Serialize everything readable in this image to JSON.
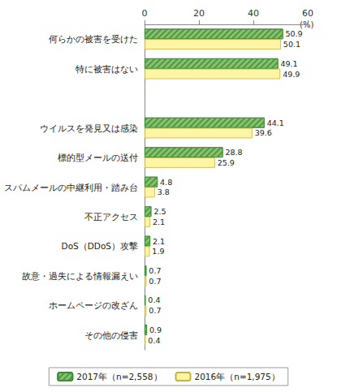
{
  "chart_data": {
    "type": "bar",
    "orientation": "horizontal",
    "x_label": "(%)",
    "categories": [
      "何らかの被害を受けた",
      "特に被害はない",
      null,
      "ウイルスを発見又は感染",
      "標的型メールの送付",
      "スパムメールの中継利用・踏み台",
      "不正アクセス",
      "DoS（DDoS）攻撃",
      "故意・過失による情報漏えい",
      "ホームページの改ざん",
      "その他の侵害"
    ],
    "series": [
      {
        "name": "2017年（n=2,558）",
        "color": "#8cc06e",
        "values": [
          50.9,
          49.1,
          null,
          44.1,
          28.8,
          4.8,
          2.5,
          2.1,
          0.7,
          0.4,
          0.9
        ]
      },
      {
        "name": "2016年（n=1,975）",
        "color": "#fff5a5",
        "values": [
          50.1,
          49.9,
          null,
          39.6,
          25.9,
          3.8,
          2.1,
          1.9,
          0.7,
          0.7,
          0.4
        ]
      }
    ],
    "xlim": [
      0,
      60
    ],
    "xticks": [
      0,
      20,
      40,
      60
    ],
    "grid": false,
    "legend": "bottom",
    "data_labels": true
  }
}
